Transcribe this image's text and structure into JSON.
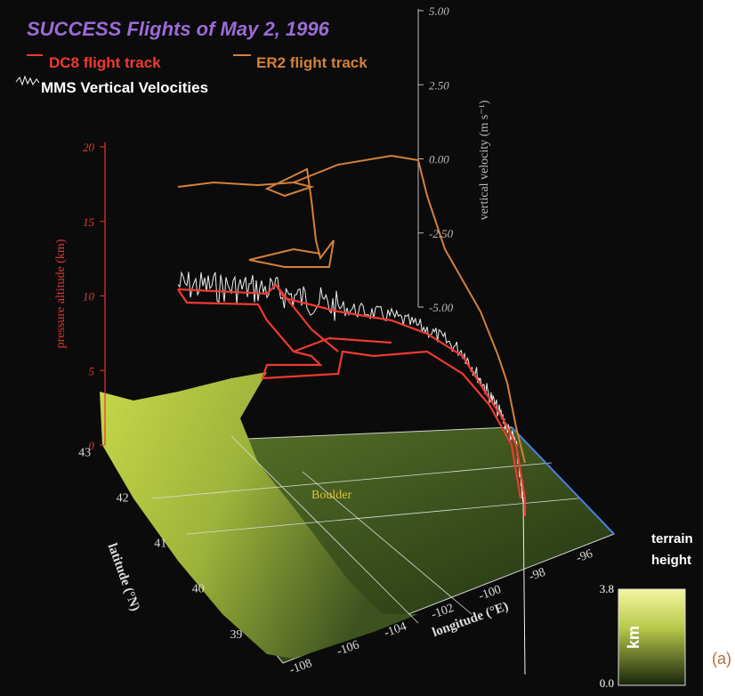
{
  "figure": {
    "title": "SUCCESS Flights of May 2, 1996",
    "legend": [
      "DC8 flight track",
      "ER2 flight track",
      "MMS Vertical Velocities"
    ],
    "altitude_axis": {
      "label": "pressure altitude (km)",
      "ticks": [
        "20",
        "15",
        "10",
        "5",
        "0"
      ]
    },
    "velocity_axis": {
      "label": "vertical velocity (m s⁻¹)",
      "ticks": [
        "5.00",
        "2.50",
        "0.00",
        "-2.50",
        "-5.00"
      ]
    },
    "latitude_axis": {
      "label": "latitude (°N)",
      "ticks": [
        "43",
        "42",
        "41",
        "40",
        "39"
      ]
    },
    "longitude_axis": {
      "label": "longitude (°E)",
      "ticks": [
        "-108",
        "-106",
        "-104",
        "-102",
        "-100",
        "-98",
        "-96"
      ]
    },
    "place": "Boulder",
    "colorbar": {
      "title": [
        "terrain",
        "height"
      ],
      "max": "3.8",
      "min": "0.0",
      "unit": "km"
    },
    "panel": "(a)"
  }
}
